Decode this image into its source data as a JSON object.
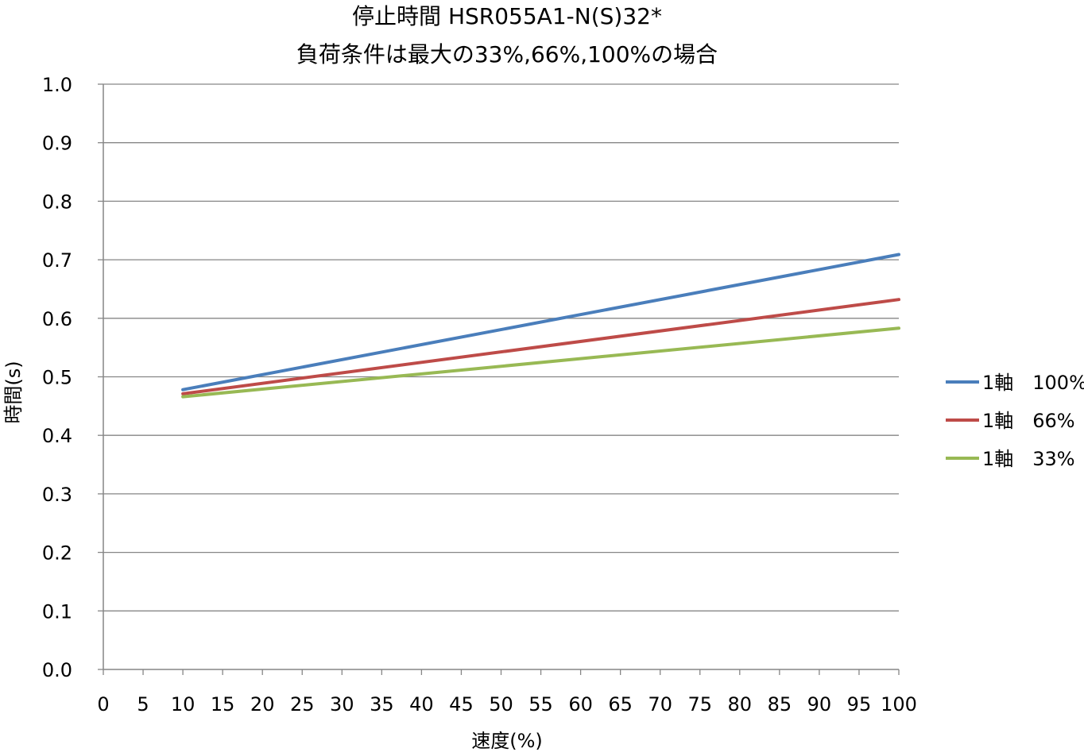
{
  "chart_data": {
    "type": "line",
    "title_line1": "停止時間 HSR055A1-N(S)32*",
    "title_line2": "負荷条件は最大の33%,66%,100%の場合",
    "xlabel": "速度(%)",
    "ylabel": "時間(s)",
    "xlim": [
      0,
      100
    ],
    "ylim": [
      0,
      1.0
    ],
    "x_ticks": [
      "0",
      "5",
      "10",
      "15",
      "20",
      "25",
      "30",
      "35",
      "40",
      "45",
      "50",
      "55",
      "60",
      "65",
      "70",
      "75",
      "80",
      "85",
      "90",
      "95",
      "100"
    ],
    "y_ticks": [
      "0.0",
      "0.1",
      "0.2",
      "0.3",
      "0.4",
      "0.5",
      "0.6",
      "0.7",
      "0.8",
      "0.9",
      "1.0"
    ],
    "grid": "horizontal",
    "legend_position": "right",
    "series": [
      {
        "name": "1軸　100%",
        "color": "#4a7ebb",
        "x": [
          10,
          100
        ],
        "y": [
          0.478,
          0.709
        ]
      },
      {
        "name": "1軸　66%",
        "color": "#be4b48",
        "x": [
          10,
          100
        ],
        "y": [
          0.471,
          0.632
        ]
      },
      {
        "name": "1軸　33%",
        "color": "#98b954",
        "x": [
          10,
          100
        ],
        "y": [
          0.466,
          0.583
        ]
      }
    ]
  }
}
